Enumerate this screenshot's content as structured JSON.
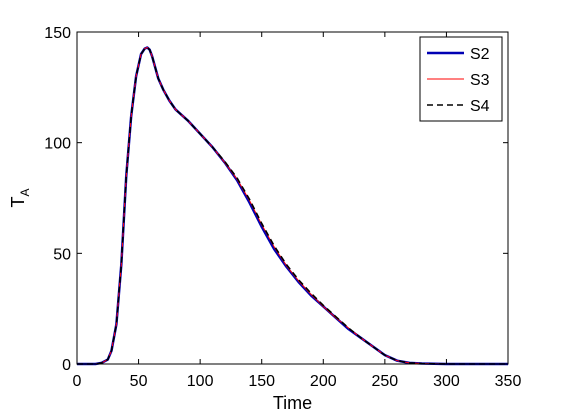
{
  "chart_data": {
    "type": "line",
    "title": "",
    "xlabel": "Time",
    "ylabel": "T",
    "ylabel_subscript": "A",
    "xlim": [
      0,
      350
    ],
    "ylim": [
      0,
      150
    ],
    "xticks": [
      0,
      50,
      100,
      150,
      200,
      250,
      300,
      350
    ],
    "yticks": [
      0,
      50,
      100,
      150
    ],
    "grid": false,
    "legend_position": "top-right",
    "series": [
      {
        "name": "S2",
        "color": "#0000b4",
        "style": "solid-thick",
        "x": [
          0,
          15,
          20,
          25,
          28,
          32,
          36,
          40,
          44,
          48,
          52,
          55,
          57,
          59,
          61,
          63,
          66,
          70,
          75,
          80,
          90,
          100,
          110,
          120,
          130,
          140,
          150,
          160,
          170,
          180,
          190,
          200,
          210,
          220,
          230,
          240,
          250,
          260,
          270,
          280,
          290,
          300,
          320,
          350
        ],
        "y": [
          0,
          0,
          0.5,
          2,
          6,
          18,
          45,
          85,
          112,
          130,
          140,
          142.5,
          143,
          142,
          139,
          135,
          129,
          124,
          119,
          115,
          110,
          104,
          98,
          91,
          83,
          73,
          62,
          52,
          44,
          37,
          31,
          26,
          21,
          16,
          12,
          8,
          4,
          1.5,
          0.5,
          0.2,
          0.1,
          0,
          0,
          0
        ]
      },
      {
        "name": "S3",
        "color": "#ff0000",
        "style": "solid-thin",
        "x": [
          0,
          15,
          20,
          25,
          28,
          32,
          36,
          40,
          44,
          48,
          52,
          55,
          57,
          59,
          61,
          63,
          66,
          70,
          75,
          80,
          90,
          100,
          110,
          120,
          130,
          140,
          150,
          160,
          170,
          180,
          190,
          200,
          210,
          220,
          230,
          240,
          250,
          260,
          270,
          280,
          290,
          300,
          320,
          350
        ],
        "y": [
          0,
          0,
          0.5,
          2,
          6,
          18,
          45,
          85,
          112,
          130,
          140,
          142.5,
          143,
          142,
          139,
          135,
          129,
          124,
          119,
          115,
          110,
          104,
          98,
          91,
          83.5,
          74,
          63,
          53,
          44.5,
          37.5,
          31.5,
          26,
          21,
          16.5,
          12,
          8,
          4,
          1.5,
          0.5,
          0.2,
          0.1,
          0,
          0,
          0
        ]
      },
      {
        "name": "S4",
        "color": "#000000",
        "style": "dashed",
        "x": [
          0,
          15,
          20,
          25,
          28,
          32,
          36,
          40,
          44,
          48,
          52,
          55,
          57,
          59,
          61,
          63,
          66,
          70,
          75,
          80,
          90,
          100,
          110,
          120,
          130,
          140,
          150,
          160,
          170,
          180,
          190,
          200,
          210,
          220,
          230,
          240,
          250,
          260,
          270,
          280,
          290,
          300,
          320,
          350
        ],
        "y": [
          0,
          0,
          0.5,
          2,
          6,
          18,
          45,
          85,
          112,
          130,
          140,
          142.5,
          143,
          142,
          139,
          135,
          129,
          124,
          119,
          115,
          110,
          104,
          98,
          91.5,
          84,
          74.5,
          63.5,
          53.5,
          45,
          38,
          32,
          26.5,
          21.5,
          16.5,
          12,
          8,
          4,
          1.5,
          0.5,
          0.2,
          0.1,
          0,
          0,
          0
        ]
      }
    ]
  }
}
